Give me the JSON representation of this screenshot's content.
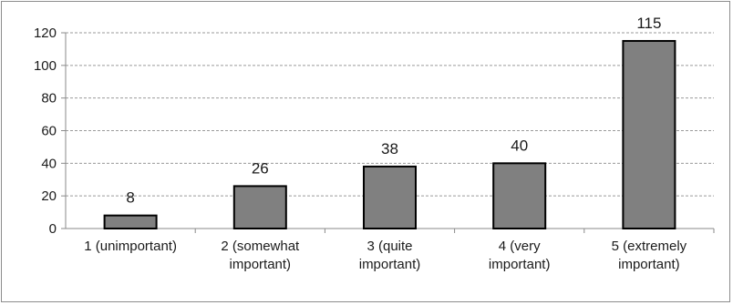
{
  "chart_data": {
    "type": "bar",
    "title": "",
    "xlabel": "",
    "ylabel": "",
    "categories": [
      [
        "1 (unimportant)"
      ],
      [
        "2 (somewhat",
        "important)"
      ],
      [
        "3 (quite",
        "important)"
      ],
      [
        "4 (very",
        "important)"
      ],
      [
        "5 (extremely",
        "important)"
      ]
    ],
    "values": [
      8,
      26,
      38,
      40,
      115
    ],
    "ylim": [
      0,
      120
    ],
    "yticks": [
      0,
      20,
      40,
      60,
      80,
      100,
      120
    ],
    "grid": true,
    "legend": "none",
    "colors": {
      "bar": "#808080",
      "bar_stroke": "#000000",
      "grid": "#9a9a9a",
      "axis": "#8a8a8a"
    }
  }
}
